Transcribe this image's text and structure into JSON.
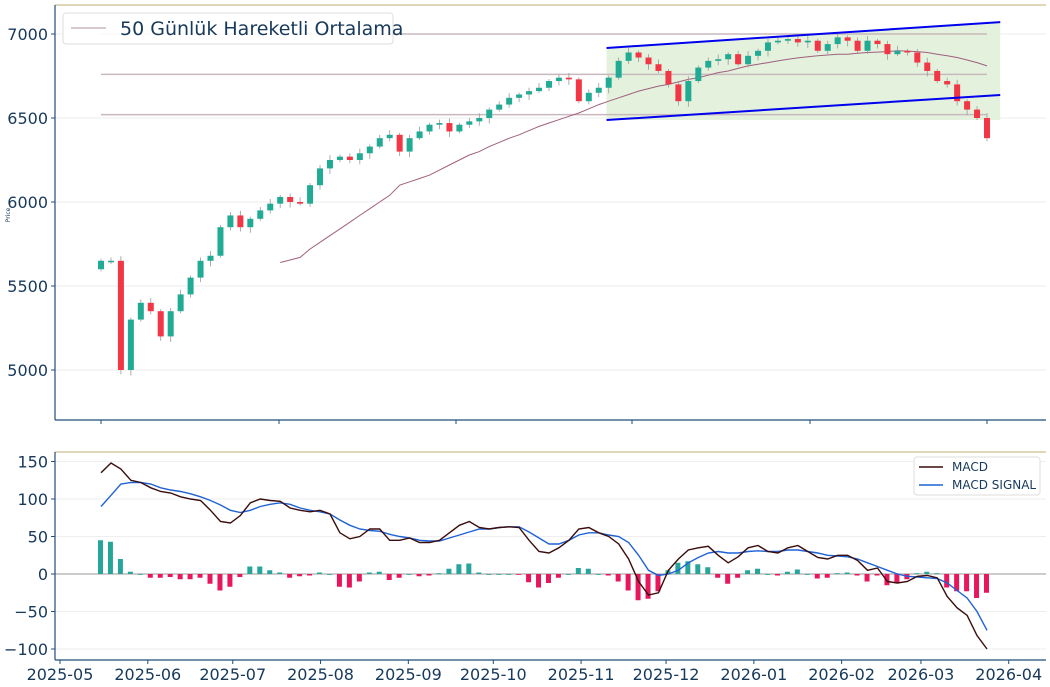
{
  "chart_data": [
    {
      "type": "candlestick",
      "ylabel": "Price",
      "ylim": [
        4700,
        7170
      ],
      "yticks": [
        5000,
        5500,
        6000,
        6500,
        7000
      ],
      "legend": {
        "label": "50 Günlük Hareketli Ortalama",
        "placement": "top-left"
      },
      "start_date": "2025-05-15",
      "end_date": "2026-03-27",
      "first_open": 5600,
      "closes": [
        5650,
        5650,
        5000,
        5300,
        5400,
        5350,
        5200,
        5350,
        5450,
        5550,
        5650,
        5680,
        5850,
        5920,
        5850,
        5900,
        5950,
        5990,
        6030,
        6000,
        5990,
        6100,
        6200,
        6250,
        6270,
        6250,
        6290,
        6330,
        6380,
        6400,
        6300,
        6380,
        6420,
        6460,
        6470,
        6420,
        6460,
        6480,
        6500,
        6550,
        6580,
        6620,
        6640,
        6660,
        6680,
        6720,
        6740,
        6730,
        6600,
        6650,
        6680,
        6740,
        6840,
        6890,
        6860,
        6820,
        6780,
        6700,
        6600,
        6720,
        6800,
        6840,
        6850,
        6880,
        6820,
        6870,
        6900,
        6950,
        6960,
        6970,
        6950,
        6960,
        6900,
        6940,
        6980,
        6960,
        6900,
        6960,
        6940,
        6880,
        6900,
        6890,
        6830,
        6780,
        6720,
        6700,
        6600,
        6550,
        6500,
        6380
      ],
      "ma50": [
        null,
        null,
        null,
        null,
        null,
        null,
        null,
        null,
        null,
        null,
        null,
        null,
        null,
        null,
        null,
        null,
        null,
        null,
        5640,
        5655,
        5670,
        5720,
        5760,
        5800,
        5840,
        5880,
        5920,
        5960,
        6000,
        6040,
        6100,
        6120,
        6140,
        6160,
        6190,
        6220,
        6250,
        6280,
        6300,
        6330,
        6355,
        6380,
        6400,
        6425,
        6450,
        6470,
        6490,
        6510,
        6530,
        6555,
        6580,
        6600,
        6620,
        6640,
        6660,
        6675,
        6690,
        6700,
        6715,
        6730,
        6740,
        6755,
        6770,
        6780,
        6795,
        6810,
        6820,
        6830,
        6840,
        6850,
        6858,
        6865,
        6870,
        6875,
        6880,
        6880,
        6885,
        6890,
        6892,
        6895,
        6900,
        6898,
        6895,
        6890,
        6880,
        6870,
        6860,
        6845,
        6830,
        6810
      ],
      "horizontal_levels": [
        7000,
        6760,
        6520
      ],
      "channel": {
        "upper": [
          {
            "date": "2025-11-10",
            "value": 6917
          },
          {
            "date": "2026-03-29",
            "value": 7071
          }
        ],
        "lower": [
          {
            "date": "2025-11-10",
            "value": 6488
          },
          {
            "date": "2026-03-29",
            "value": 6637
          }
        ]
      },
      "colors": {
        "up": "#22ab94",
        "down": "#f23645",
        "ma": "#a0607e",
        "level": "#c9b9bd",
        "channel": "#0000ee",
        "channel_fill": "#dcedd4"
      }
    },
    {
      "type": "line+bar",
      "ylim": [
        -115,
        152
      ],
      "yticks": [
        -100,
        -50,
        0,
        50,
        100,
        150
      ],
      "xticks": [
        "2025-05",
        "2025-06",
        "2025-07",
        "2025-08",
        "2025-09",
        "2025-10",
        "2025-11",
        "2025-12",
        "2026-01",
        "2026-02",
        "2026-03",
        "2026-04"
      ],
      "legend": {
        "placement": "top-right",
        "entries": [
          "MACD",
          "MACD SIGNAL"
        ]
      },
      "macd": [
        135,
        148,
        140,
        125,
        122,
        115,
        110,
        108,
        103,
        100,
        98,
        85,
        70,
        68,
        78,
        95,
        100,
        98,
        97,
        88,
        85,
        83,
        85,
        80,
        55,
        47,
        50,
        60,
        60,
        45,
        45,
        48,
        42,
        42,
        45,
        55,
        65,
        70,
        62,
        60,
        62,
        63,
        62,
        45,
        30,
        28,
        35,
        45,
        60,
        62,
        55,
        50,
        40,
        20,
        -10,
        -28,
        -25,
        5,
        20,
        32,
        35,
        37,
        25,
        15,
        23,
        35,
        38,
        30,
        28,
        35,
        38,
        30,
        22,
        20,
        25,
        25,
        18,
        5,
        8,
        -10,
        -12,
        -10,
        -3,
        -2,
        -5,
        -30,
        -45,
        -55,
        -82,
        -100
      ],
      "signal": [
        90,
        105,
        120,
        122,
        122,
        120,
        115,
        112,
        110,
        107,
        103,
        98,
        92,
        85,
        82,
        85,
        90,
        93,
        95,
        93,
        88,
        85,
        83,
        80,
        72,
        65,
        60,
        58,
        57,
        53,
        50,
        48,
        45,
        44,
        44,
        48,
        52,
        56,
        60,
        60,
        62,
        63,
        63,
        56,
        48,
        40,
        40,
        45,
        52,
        55,
        55,
        52,
        50,
        42,
        25,
        5,
        -2,
        0,
        5,
        15,
        22,
        28,
        30,
        28,
        28,
        30,
        31,
        30,
        30,
        32,
        32,
        30,
        28,
        25,
        24,
        23,
        20,
        15,
        10,
        5,
        0,
        -3,
        -4,
        -5,
        -6,
        -12,
        -22,
        -32,
        -50,
        -75
      ],
      "colors": {
        "macd": "#3a0c0c",
        "signal": "#1f62d6",
        "hist_pos": "#26a69a",
        "hist_neg": "#e8175d"
      }
    }
  ]
}
